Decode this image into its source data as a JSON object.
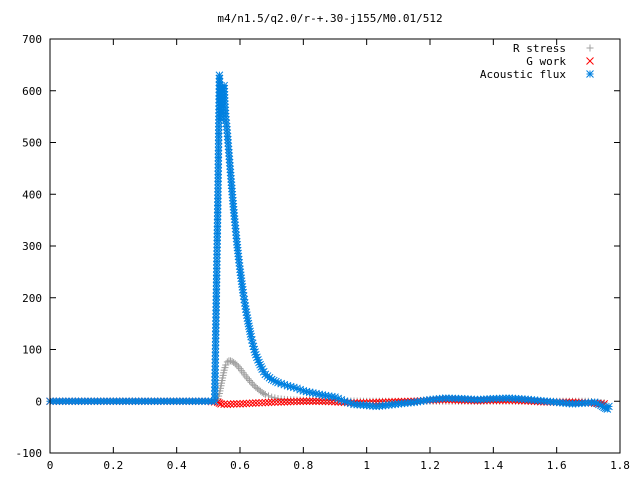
{
  "chart_data": {
    "type": "scatter",
    "title": "m4/n1.5/q2.0/r-+.30-j155/M0.01/512",
    "xlabel": "",
    "ylabel": "",
    "xlim": [
      0,
      1.8
    ],
    "ylim": [
      -100,
      700
    ],
    "x_ticks": [
      "0",
      "0.2",
      "0.4",
      "0.6",
      "0.8",
      "1",
      "1.2",
      "1.4",
      "1.6",
      "1.8"
    ],
    "y_ticks": [
      "-100",
      "0",
      "100",
      "200",
      "300",
      "400",
      "500",
      "600",
      "700"
    ],
    "grid": false,
    "legend_position": "top-right",
    "series": [
      {
        "name": "R stress",
        "color": "#a0a0a0",
        "marker": "plus",
        "points": [
          [
            0.0,
            0
          ],
          [
            0.05,
            0
          ],
          [
            0.1,
            0
          ],
          [
            0.15,
            0
          ],
          [
            0.2,
            0
          ],
          [
            0.25,
            0
          ],
          [
            0.3,
            0
          ],
          [
            0.35,
            0
          ],
          [
            0.4,
            0
          ],
          [
            0.45,
            0
          ],
          [
            0.5,
            0
          ],
          [
            0.52,
            0
          ],
          [
            0.53,
            5
          ],
          [
            0.535,
            15
          ],
          [
            0.54,
            30
          ],
          [
            0.545,
            45
          ],
          [
            0.55,
            60
          ],
          [
            0.555,
            70
          ],
          [
            0.56,
            76
          ],
          [
            0.565,
            78
          ],
          [
            0.57,
            78
          ],
          [
            0.575,
            77
          ],
          [
            0.58,
            75
          ],
          [
            0.59,
            70
          ],
          [
            0.6,
            63
          ],
          [
            0.61,
            55
          ],
          [
            0.62,
            47
          ],
          [
            0.63,
            40
          ],
          [
            0.64,
            33
          ],
          [
            0.65,
            27
          ],
          [
            0.66,
            22
          ],
          [
            0.67,
            17
          ],
          [
            0.68,
            13
          ],
          [
            0.7,
            8
          ],
          [
            0.72,
            5
          ],
          [
            0.75,
            3
          ],
          [
            0.8,
            2
          ],
          [
            0.9,
            1
          ],
          [
            1.0,
            0
          ],
          [
            1.1,
            0
          ],
          [
            1.2,
            0
          ],
          [
            1.3,
            0
          ],
          [
            1.4,
            0
          ],
          [
            1.5,
            0
          ],
          [
            1.6,
            0
          ],
          [
            1.7,
            0
          ],
          [
            1.75,
            -3
          ]
        ]
      },
      {
        "name": "G work",
        "color": "#ff0000",
        "marker": "cross",
        "points": [
          [
            0.0,
            0
          ],
          [
            0.1,
            0
          ],
          [
            0.2,
            0
          ],
          [
            0.3,
            0
          ],
          [
            0.4,
            0
          ],
          [
            0.5,
            0
          ],
          [
            0.53,
            -2
          ],
          [
            0.54,
            -5
          ],
          [
            0.56,
            -6
          ],
          [
            0.58,
            -5
          ],
          [
            0.6,
            -5
          ],
          [
            0.63,
            -4
          ],
          [
            0.66,
            -3
          ],
          [
            0.7,
            -2
          ],
          [
            0.75,
            -1
          ],
          [
            0.8,
            0
          ],
          [
            0.85,
            0
          ],
          [
            0.9,
            -1
          ],
          [
            0.95,
            -3
          ],
          [
            1.0,
            -3
          ],
          [
            1.05,
            -2
          ],
          [
            1.1,
            -1
          ],
          [
            1.15,
            0
          ],
          [
            1.2,
            2
          ],
          [
            1.25,
            3
          ],
          [
            1.3,
            2
          ],
          [
            1.35,
            1
          ],
          [
            1.4,
            2
          ],
          [
            1.45,
            2
          ],
          [
            1.5,
            1
          ],
          [
            1.55,
            -1
          ],
          [
            1.6,
            -2
          ],
          [
            1.65,
            -2
          ],
          [
            1.7,
            -3
          ],
          [
            1.75,
            -5
          ]
        ]
      },
      {
        "name": "Acoustic flux",
        "color": "#0080e0",
        "marker": "star",
        "points": [
          [
            0.0,
            0
          ],
          [
            0.05,
            0
          ],
          [
            0.1,
            0
          ],
          [
            0.15,
            0
          ],
          [
            0.2,
            0
          ],
          [
            0.25,
            0
          ],
          [
            0.3,
            0
          ],
          [
            0.35,
            0
          ],
          [
            0.4,
            0
          ],
          [
            0.45,
            0
          ],
          [
            0.5,
            0
          ],
          [
            0.52,
            0
          ],
          [
            0.53,
            385
          ],
          [
            0.535,
            630
          ],
          [
            0.54,
            545
          ],
          [
            0.545,
            600
          ],
          [
            0.55,
            610
          ],
          [
            0.552,
            580
          ],
          [
            0.555,
            550
          ],
          [
            0.56,
            518
          ],
          [
            0.565,
            480
          ],
          [
            0.57,
            442
          ],
          [
            0.575,
            405
          ],
          [
            0.58,
            370
          ],
          [
            0.585,
            340
          ],
          [
            0.59,
            308
          ],
          [
            0.595,
            280
          ],
          [
            0.6,
            255
          ],
          [
            0.605,
            232
          ],
          [
            0.61,
            210
          ],
          [
            0.615,
            190
          ],
          [
            0.62,
            172
          ],
          [
            0.625,
            155
          ],
          [
            0.63,
            140
          ],
          [
            0.635,
            125
          ],
          [
            0.64,
            112
          ],
          [
            0.645,
            100
          ],
          [
            0.65,
            90
          ],
          [
            0.66,
            75
          ],
          [
            0.67,
            62
          ],
          [
            0.68,
            52
          ],
          [
            0.7,
            42
          ],
          [
            0.72,
            36
          ],
          [
            0.75,
            30
          ],
          [
            0.78,
            25
          ],
          [
            0.8,
            20
          ],
          [
            0.83,
            16
          ],
          [
            0.86,
            12
          ],
          [
            0.9,
            8
          ],
          [
            0.93,
            0
          ],
          [
            0.96,
            -6
          ],
          [
            1.0,
            -8
          ],
          [
            1.03,
            -10
          ],
          [
            1.06,
            -8
          ],
          [
            1.1,
            -5
          ],
          [
            1.15,
            -2
          ],
          [
            1.2,
            3
          ],
          [
            1.25,
            6
          ],
          [
            1.3,
            5
          ],
          [
            1.35,
            3
          ],
          [
            1.4,
            5
          ],
          [
            1.45,
            6
          ],
          [
            1.5,
            4
          ],
          [
            1.55,
            1
          ],
          [
            1.6,
            -2
          ],
          [
            1.65,
            -5
          ],
          [
            1.7,
            -3
          ],
          [
            1.72,
            -2
          ],
          [
            1.74,
            -8
          ],
          [
            1.75,
            -12
          ],
          [
            1.76,
            -15
          ],
          [
            1.765,
            -10
          ]
        ]
      }
    ]
  }
}
